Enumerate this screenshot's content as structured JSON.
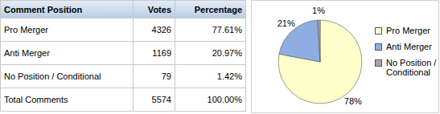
{
  "table": {
    "header": [
      "Comment Position",
      "Votes",
      "Percentage"
    ],
    "rows": [
      [
        "Pro Merger",
        4326,
        "77.61%"
      ],
      [
        "Anti Merger",
        1169,
        "20.97%"
      ],
      [
        "No Position / Conditional",
        79,
        "1.42%"
      ],
      [
        "Total Comments",
        5574,
        "100.00%"
      ]
    ]
  },
  "chart_data": {
    "type": "pie",
    "categories": [
      "Pro Merger",
      "Anti Merger",
      "No Position / Conditional"
    ],
    "values": [
      78,
      21,
      1
    ],
    "value_labels": [
      "78%",
      "21%",
      "1%"
    ],
    "colors": [
      "#ffffcc",
      "#8eaee3",
      "#a6a6a6"
    ],
    "data_labels": true,
    "legend": "right"
  }
}
